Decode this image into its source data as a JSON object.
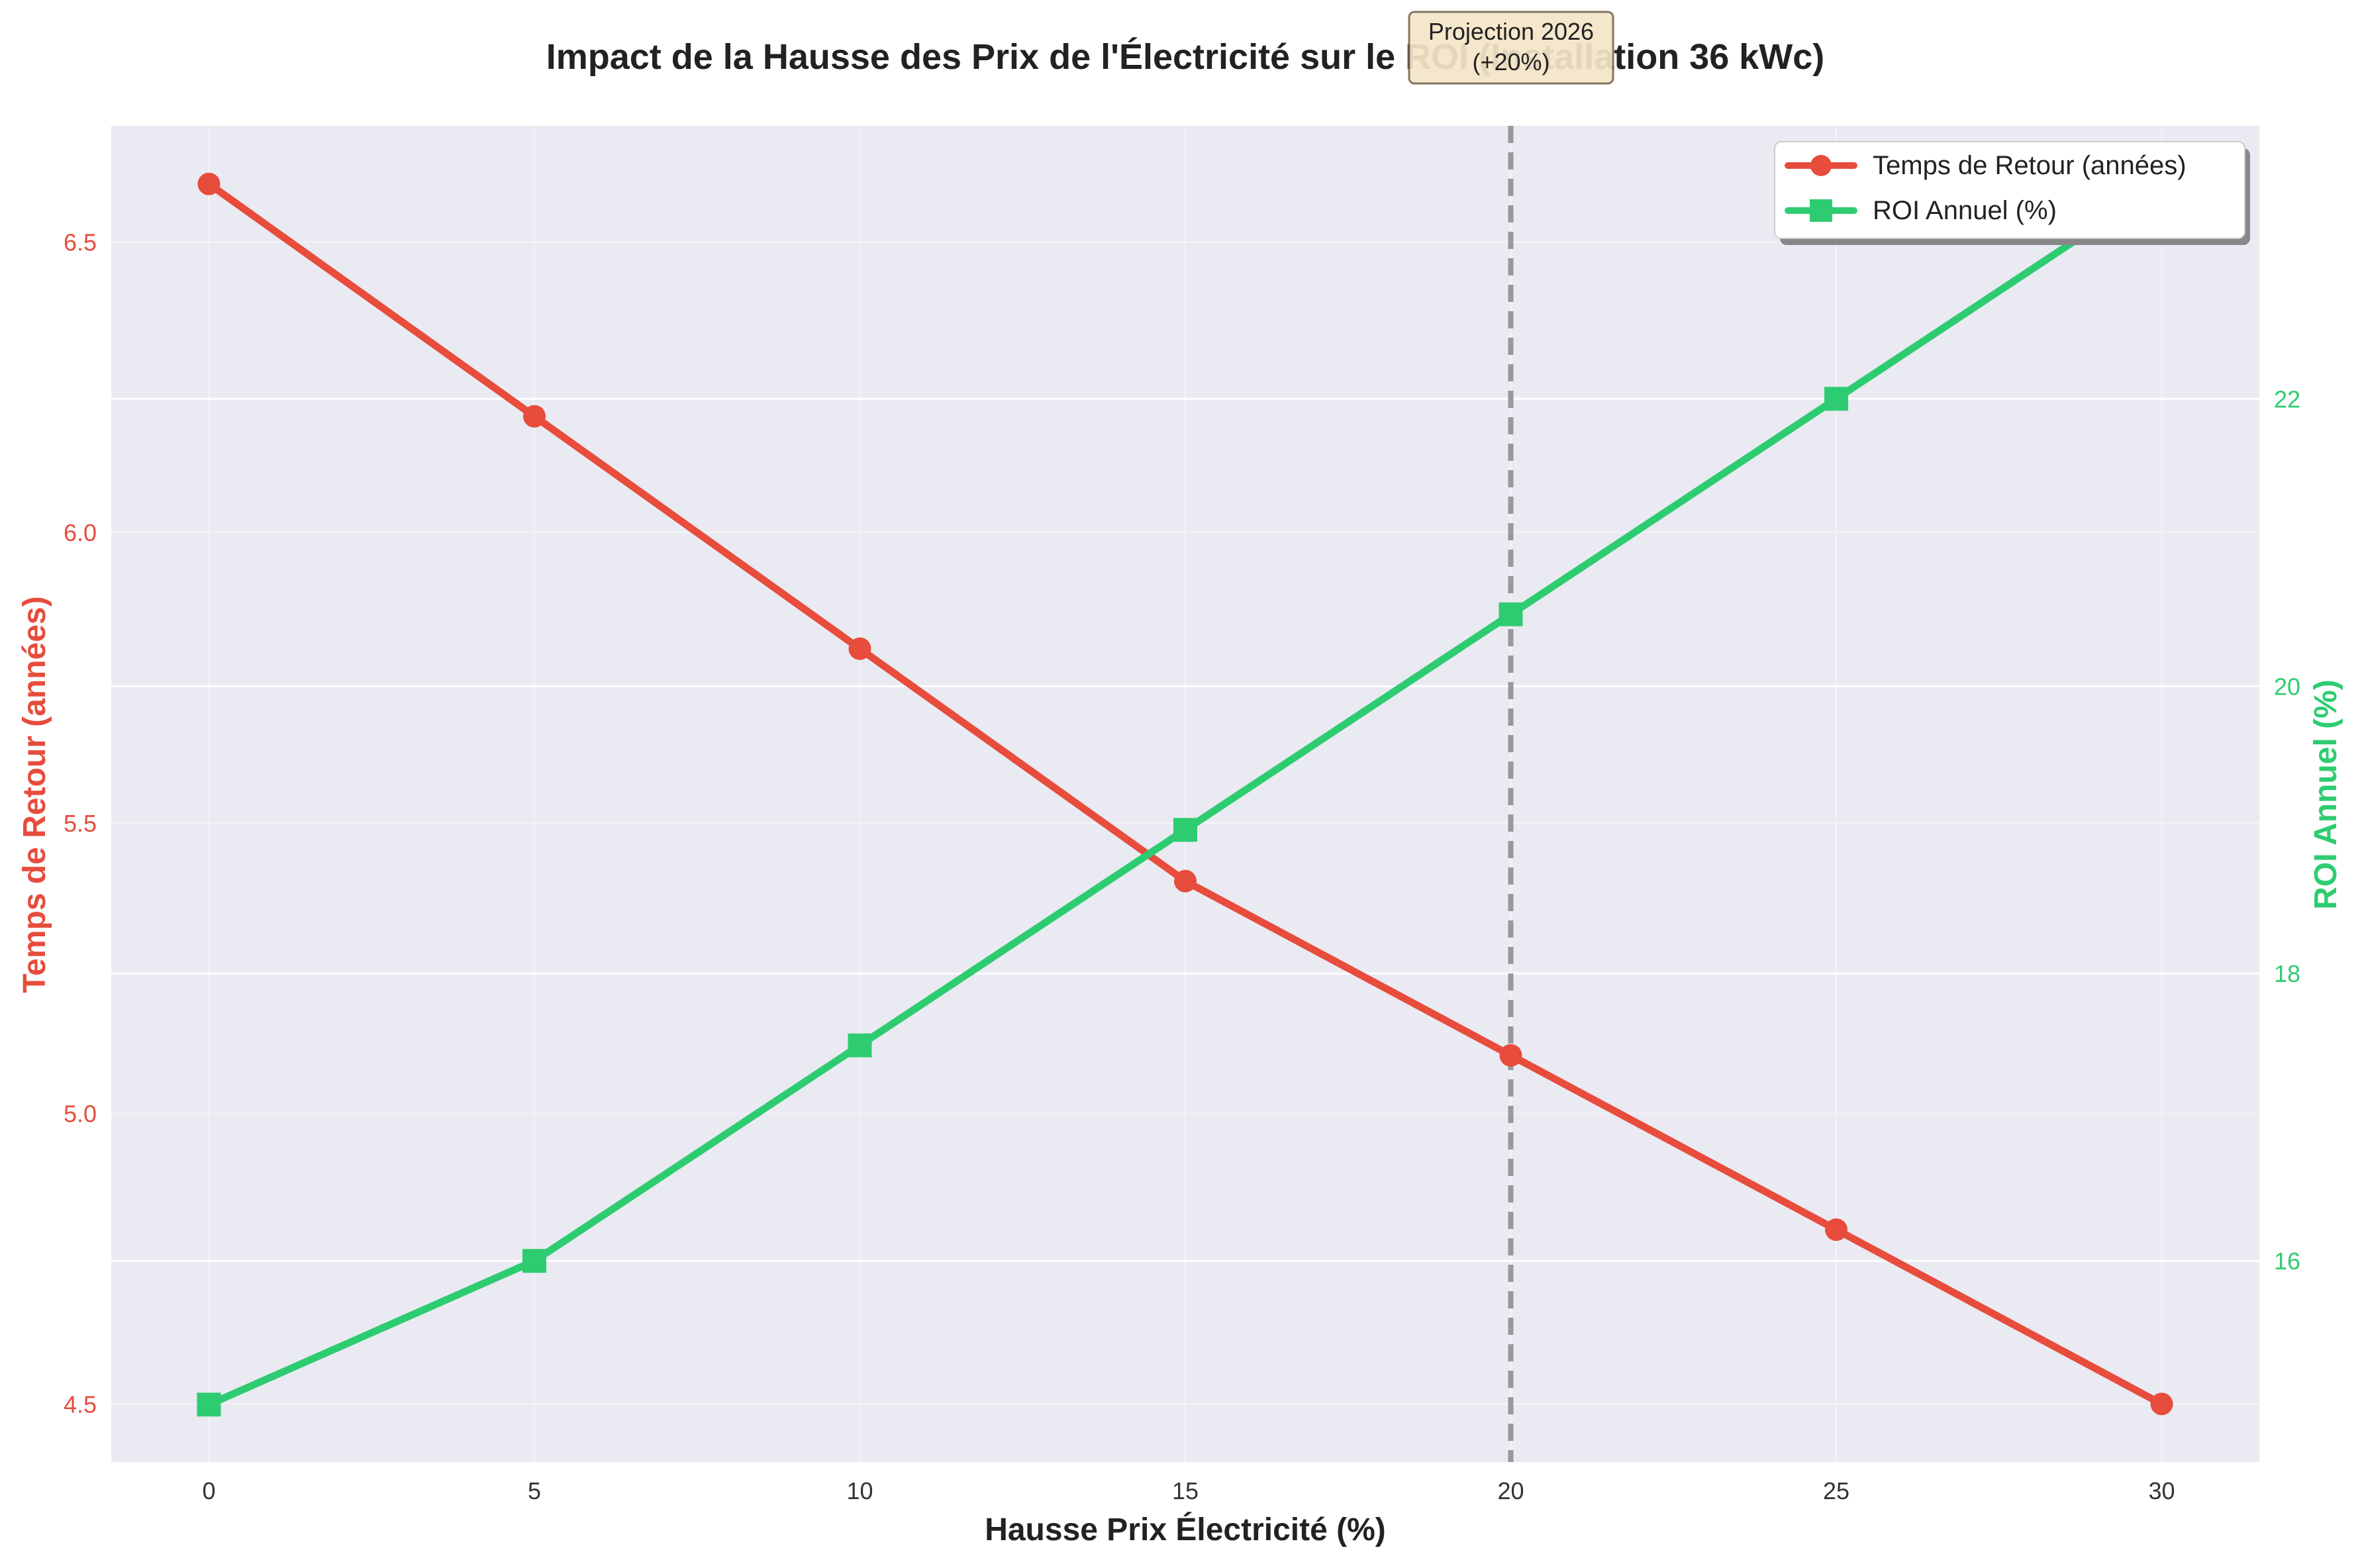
{
  "chart_data": {
    "type": "line",
    "title": "Impact de la Hausse des Prix de l'Électricité sur le ROI (Installation 36 kWc)",
    "xlabel": "Hausse Prix Électricité (%)",
    "ylabel_left": "Temps de Retour (années)",
    "ylabel_right": "ROI Annuel (%)",
    "x": [
      0,
      5,
      10,
      15,
      20,
      25,
      30
    ],
    "x_ticks": [
      "0",
      "5",
      "10",
      "15",
      "20",
      "25",
      "30"
    ],
    "xlim": [
      -1.5,
      31.5
    ],
    "ylim_left": [
      4.4,
      6.7
    ],
    "yticks_left": [
      "4.5",
      "5.0",
      "5.5",
      "6.0",
      "6.5"
    ],
    "ylim_right": [
      14.6,
      23.9
    ],
    "yticks_right": [
      "16",
      "18",
      "20",
      "22"
    ],
    "series": [
      {
        "name": "Temps de Retour (années)",
        "axis": "left",
        "marker": "circle",
        "color": "#e74c3c",
        "values": [
          6.6,
          6.2,
          5.8,
          5.4,
          5.1,
          4.8,
          4.5
        ]
      },
      {
        "name": "ROI Annuel (%)",
        "axis": "right",
        "marker": "square",
        "color": "#2ecc71",
        "values": [
          15.0,
          16.0,
          17.5,
          19.0,
          20.5,
          22.0,
          23.5
        ]
      }
    ],
    "annotation": {
      "x": 20,
      "line1": "Projection 2026",
      "line2": "(+20%)"
    },
    "grid": true,
    "legend_position": "top-right",
    "colors": {
      "plot_bg": "#eaeaf2",
      "left_axis": "#e74c3c",
      "right_axis": "#2ecc71",
      "vline": "#999999",
      "annotation_bg": "#f5e6c8"
    }
  }
}
